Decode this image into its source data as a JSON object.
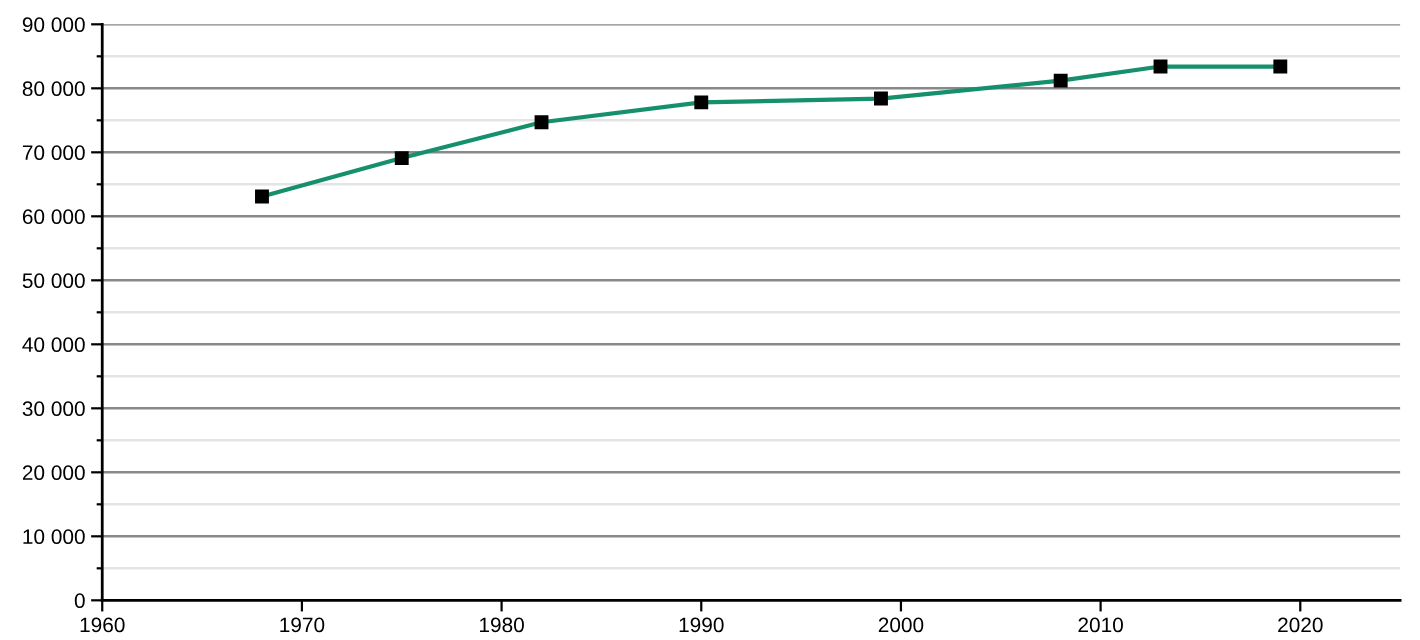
{
  "chart_data": {
    "type": "line",
    "x": [
      1968,
      1975,
      1982,
      1990,
      1999,
      2008,
      2013,
      2019
    ],
    "series": [
      {
        "color": "#16906c",
        "values": [
          63100,
          69100,
          74700,
          77800,
          78400,
          81200,
          83400,
          83400
        ]
      }
    ],
    "xlim": [
      1960,
      2025
    ],
    "xticks": [
      1960,
      1970,
      1980,
      1990,
      2000,
      2010,
      2020
    ],
    "ylim": [
      0,
      90000
    ],
    "yticks": [
      {
        "value": 0,
        "label": "0"
      },
      {
        "value": 5000,
        "label": null
      },
      {
        "value": 10000,
        "label": "10 000"
      },
      {
        "value": 15000,
        "label": null
      },
      {
        "value": 20000,
        "label": "20 000"
      },
      {
        "value": 25000,
        "label": null
      },
      {
        "value": 30000,
        "label": "30 000"
      },
      {
        "value": 35000,
        "label": null
      },
      {
        "value": 40000,
        "label": "40 000"
      },
      {
        "value": 45000,
        "label": null
      },
      {
        "value": 50000,
        "label": "50 000"
      },
      {
        "value": 55000,
        "label": null
      },
      {
        "value": 60000,
        "label": "60 000"
      },
      {
        "value": 65000,
        "label": null
      },
      {
        "value": 70000,
        "label": "70 000"
      },
      {
        "value": 75000,
        "label": null
      },
      {
        "value": 80000,
        "label": "80 000"
      },
      {
        "value": 85000,
        "label": null
      },
      {
        "value": 90000,
        "label": "90 000"
      }
    ],
    "grid": "y",
    "marker": "square",
    "line_style": "solid"
  }
}
